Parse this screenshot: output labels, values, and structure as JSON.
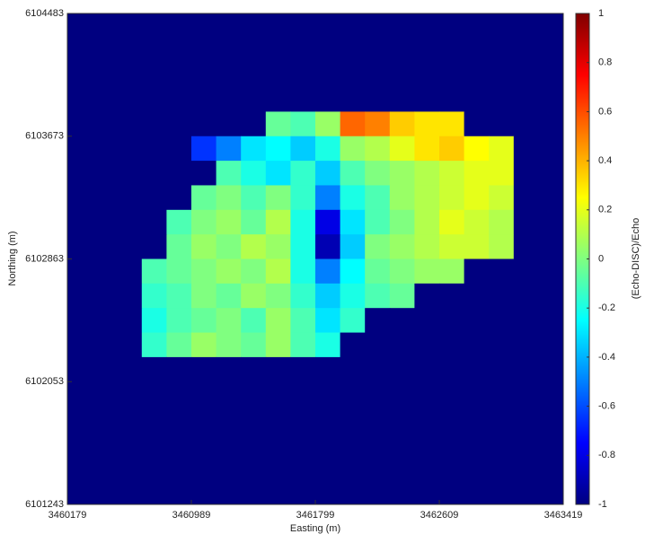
{
  "chart_data": {
    "type": "heatmap",
    "x_label": "Easting (m)",
    "y_label": "Northing (m)",
    "colorbar_label": "(Echo-DISC)/Echo",
    "colormap": "jet",
    "xlim": [
      3460179,
      3463419
    ],
    "xticks": [
      3460179,
      3460989,
      3461799,
      3462609,
      3463419
    ],
    "ylim": [
      6101243,
      6104483
    ],
    "yticks": [
      6101243,
      6102053,
      6102863,
      6103673,
      6104483
    ],
    "zlim": [
      -1,
      1
    ],
    "zticks": [
      -1,
      -0.8,
      -0.6,
      -0.4,
      -0.2,
      0,
      0.2,
      0.4,
      0.6,
      0.8,
      1
    ],
    "z": [
      [
        -1,
        -1,
        -1,
        -1,
        -1,
        -1,
        -1,
        -1,
        -1,
        -1,
        -1,
        -1,
        -1,
        -1,
        -1,
        -1,
        -1,
        -1,
        -1,
        -1
      ],
      [
        -1,
        -1,
        -1,
        -1,
        -1,
        -1,
        -1,
        -1,
        -1,
        -1,
        -1,
        -1,
        -1,
        -1,
        -1,
        -1,
        -1,
        -1,
        -1,
        -1
      ],
      [
        -1,
        -1,
        -1,
        -1,
        -1,
        -1,
        -1,
        -1,
        -1,
        -1,
        -1,
        -1,
        -1,
        -1,
        -1,
        -1,
        -1,
        -1,
        -1,
        -1
      ],
      [
        -1,
        -1,
        -1,
        -1,
        -1,
        -1,
        -1,
        -1,
        -1,
        -1,
        -1,
        -1,
        -1,
        -1,
        -1,
        -1,
        -1,
        -1,
        -1,
        -1
      ],
      [
        -1,
        -1,
        -1,
        -1,
        -1,
        -1,
        -1,
        -1,
        -0.05,
        -0.1,
        0.05,
        0.55,
        0.5,
        0.35,
        0.3,
        0.3,
        -1,
        -1,
        -1,
        -1
      ],
      [
        -1,
        -1,
        -1,
        -1,
        -1,
        -0.65,
        -0.5,
        -0.3,
        -0.25,
        -0.35,
        -0.2,
        0.05,
        0.1,
        0.2,
        0.3,
        0.35,
        0.25,
        0.2,
        -1,
        -1
      ],
      [
        -1,
        -1,
        -1,
        -1,
        -1,
        -1,
        -0.1,
        -0.2,
        -0.3,
        -0.15,
        -0.35,
        -0.1,
        0,
        0.05,
        0.1,
        0.15,
        0.2,
        0.2,
        -1,
        -1
      ],
      [
        -1,
        -1,
        -1,
        -1,
        -1,
        -0.05,
        0,
        -0.1,
        0,
        -0.15,
        -0.5,
        -0.2,
        -0.1,
        0.05,
        0.1,
        0.15,
        0.2,
        0.15,
        -1,
        -1
      ],
      [
        -1,
        -1,
        -1,
        -1,
        -0.1,
        0,
        0.05,
        -0.05,
        0.1,
        -0.2,
        -0.8,
        -0.3,
        -0.1,
        0,
        0.1,
        0.2,
        0.15,
        0.1,
        -1,
        -1
      ],
      [
        -1,
        -1,
        -1,
        -1,
        -0.05,
        0.05,
        0,
        0.1,
        0.05,
        -0.2,
        -0.9,
        -0.35,
        0,
        0.05,
        0.1,
        0.15,
        0.15,
        0.1,
        -1,
        -1
      ],
      [
        -1,
        -1,
        -1,
        -0.1,
        -0.05,
        0,
        0.05,
        0,
        0.1,
        -0.2,
        -0.5,
        -0.25,
        -0.05,
        0,
        0.05,
        0.05,
        -1,
        -1,
        -1,
        -1
      ],
      [
        -1,
        -1,
        -1,
        -0.15,
        -0.1,
        0,
        -0.05,
        0.05,
        0,
        -0.15,
        -0.35,
        -0.2,
        -0.1,
        -0.05,
        -1,
        -1,
        -1,
        -1,
        -1,
        -1
      ],
      [
        -1,
        -1,
        -1,
        -0.2,
        -0.1,
        -0.05,
        0,
        -0.1,
        0.05,
        -0.1,
        -0.3,
        -0.15,
        -1,
        -1,
        -1,
        -1,
        -1,
        -1,
        -1,
        -1
      ],
      [
        -1,
        -1,
        -1,
        -0.15,
        -0.05,
        0.05,
        0,
        -0.05,
        0.05,
        -0.1,
        -0.2,
        -1,
        -1,
        -1,
        -1,
        -1,
        -1,
        -1,
        -1,
        -1
      ],
      [
        -1,
        -1,
        -1,
        -1,
        -1,
        -1,
        -1,
        -1,
        -1,
        -1,
        -1,
        -1,
        -1,
        -1,
        -1,
        -1,
        -1,
        -1,
        -1,
        -1
      ],
      [
        -1,
        -1,
        -1,
        -1,
        -1,
        -1,
        -1,
        -1,
        -1,
        -1,
        -1,
        -1,
        -1,
        -1,
        -1,
        -1,
        -1,
        -1,
        -1,
        -1
      ],
      [
        -1,
        -1,
        -1,
        -1,
        -1,
        -1,
        -1,
        -1,
        -1,
        -1,
        -1,
        -1,
        -1,
        -1,
        -1,
        -1,
        -1,
        -1,
        -1,
        -1
      ],
      [
        -1,
        -1,
        -1,
        -1,
        -1,
        -1,
        -1,
        -1,
        -1,
        -1,
        -1,
        -1,
        -1,
        -1,
        -1,
        -1,
        -1,
        -1,
        -1,
        -1
      ],
      [
        -1,
        -1,
        -1,
        -1,
        -1,
        -1,
        -1,
        -1,
        -1,
        -1,
        -1,
        -1,
        -1,
        -1,
        -1,
        -1,
        -1,
        -1,
        -1,
        -1
      ],
      [
        -1,
        -1,
        -1,
        -1,
        -1,
        -1,
        -1,
        -1,
        -1,
        -1,
        -1,
        -1,
        -1,
        -1,
        -1,
        -1,
        -1,
        -1,
        -1,
        -1
      ]
    ]
  }
}
